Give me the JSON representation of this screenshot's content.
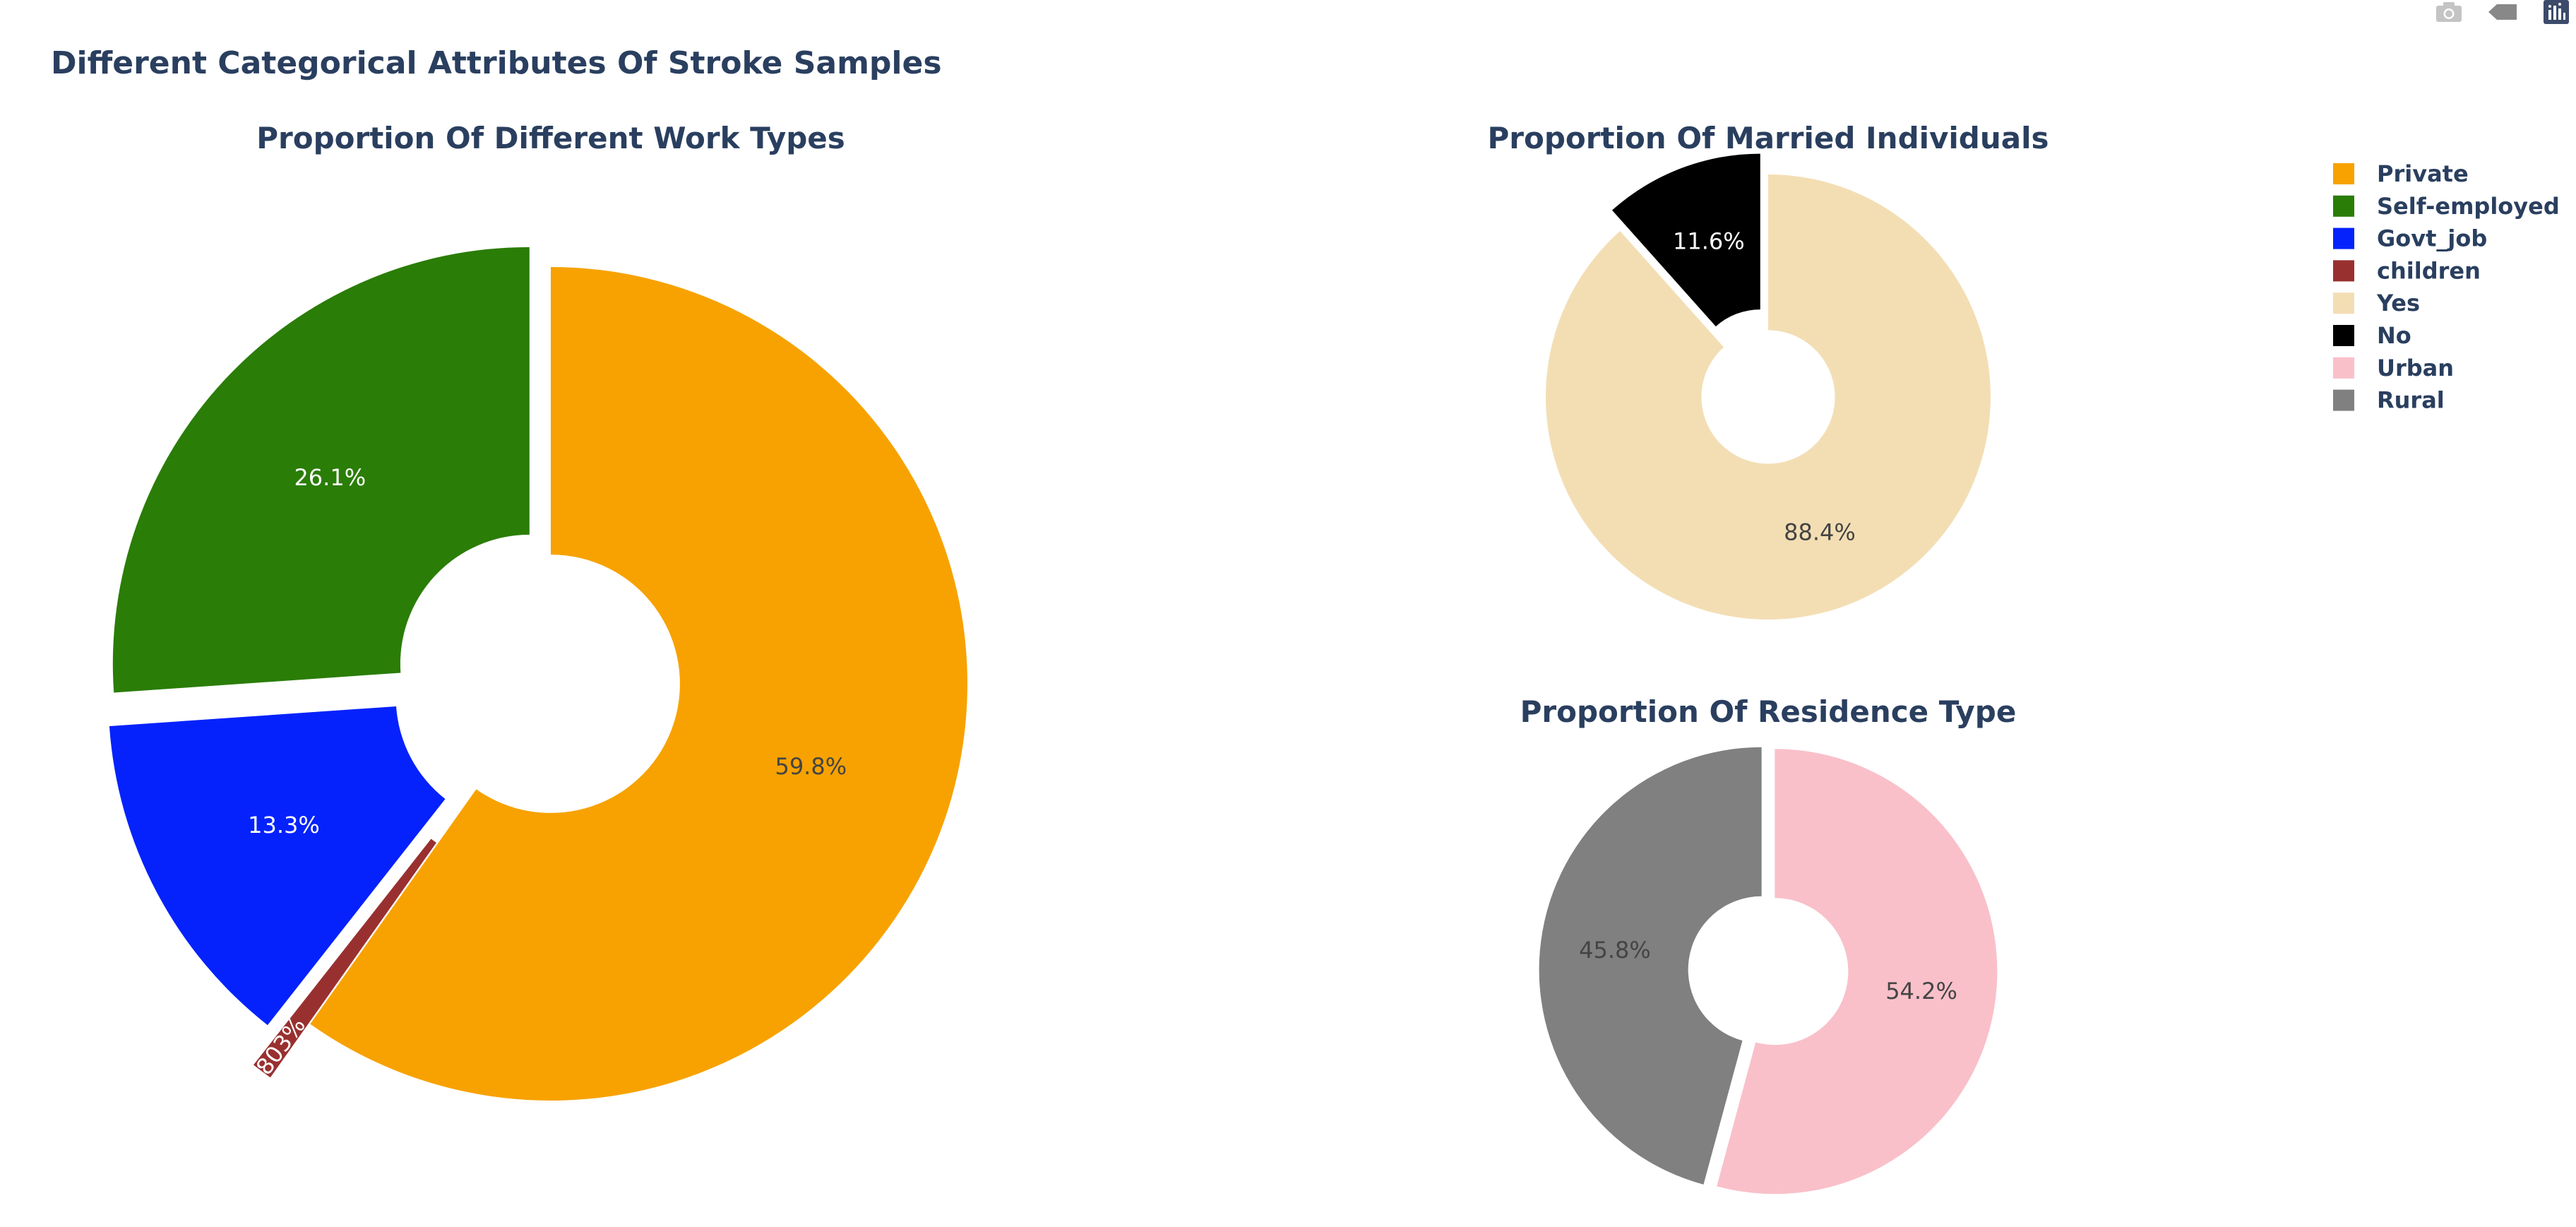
{
  "title": "Different Categorical Attributes Of Stroke Samples",
  "modebar": {
    "buttons": [
      {
        "icon": "camera-icon",
        "name": "download-plot-button"
      },
      {
        "icon": "tag-icon",
        "name": "hover-toggle-button"
      },
      {
        "icon": "plotly-logo-icon",
        "name": "plotly-logo-link"
      }
    ]
  },
  "chart_data": [
    {
      "type": "pie",
      "hole": 0.31,
      "title": "Proportion Of Different Work Types",
      "slices": [
        {
          "label": "Private",
          "value": 59.8,
          "text": "59.8%",
          "color": "#f7a200",
          "pull": 0,
          "textcolor": "#444444"
        },
        {
          "label": "children",
          "value": 0.803,
          "text": "0.803%",
          "color": "#993030",
          "pull": 0.16,
          "textcolor": "#ffffff"
        },
        {
          "label": "Govt_job",
          "value": 13.3,
          "text": "13.3%",
          "color": "#0522fc",
          "pull": 0.07,
          "textcolor": "#ffffff"
        },
        {
          "label": "Self-employed",
          "value": 26.1,
          "text": "26.1%",
          "color": "#2a7d06",
          "pull": 0.07,
          "textcolor": "#ffffff"
        }
      ]
    },
    {
      "type": "pie",
      "hole": 0.3,
      "title": "Proportion Of Married Individuals",
      "slices": [
        {
          "label": "Yes",
          "value": 88.4,
          "text": "88.4%",
          "color": "#f3deb4",
          "pull": 0,
          "textcolor": "#444444"
        },
        {
          "label": "No",
          "value": 11.6,
          "text": "11.6%",
          "color": "#000000",
          "pull": 0.1,
          "textcolor": "#ffffff"
        }
      ]
    },
    {
      "type": "pie",
      "hole": 0.33,
      "title": "Proportion Of Residence Type",
      "slices": [
        {
          "label": "Urban",
          "value": 54.2,
          "text": "54.2%",
          "color": "#f9c0ca",
          "pull": 0.03,
          "textcolor": "#444444"
        },
        {
          "label": "Rural",
          "value": 45.8,
          "text": "45.8%",
          "color": "#808080",
          "pull": 0.03,
          "textcolor": "#444444"
        }
      ]
    }
  ],
  "legend": {
    "position": "top-right",
    "items": [
      {
        "label": "Private",
        "color": "#f7a200"
      },
      {
        "label": "Self-employed",
        "color": "#2a7d06"
      },
      {
        "label": "Govt_job",
        "color": "#0522fc"
      },
      {
        "label": "children",
        "color": "#993030"
      },
      {
        "label": "Yes",
        "color": "#f3deb4"
      },
      {
        "label": "No",
        "color": "#000000"
      },
      {
        "label": "Urban",
        "color": "#f9c0ca"
      },
      {
        "label": "Rural",
        "color": "#808080"
      }
    ]
  }
}
